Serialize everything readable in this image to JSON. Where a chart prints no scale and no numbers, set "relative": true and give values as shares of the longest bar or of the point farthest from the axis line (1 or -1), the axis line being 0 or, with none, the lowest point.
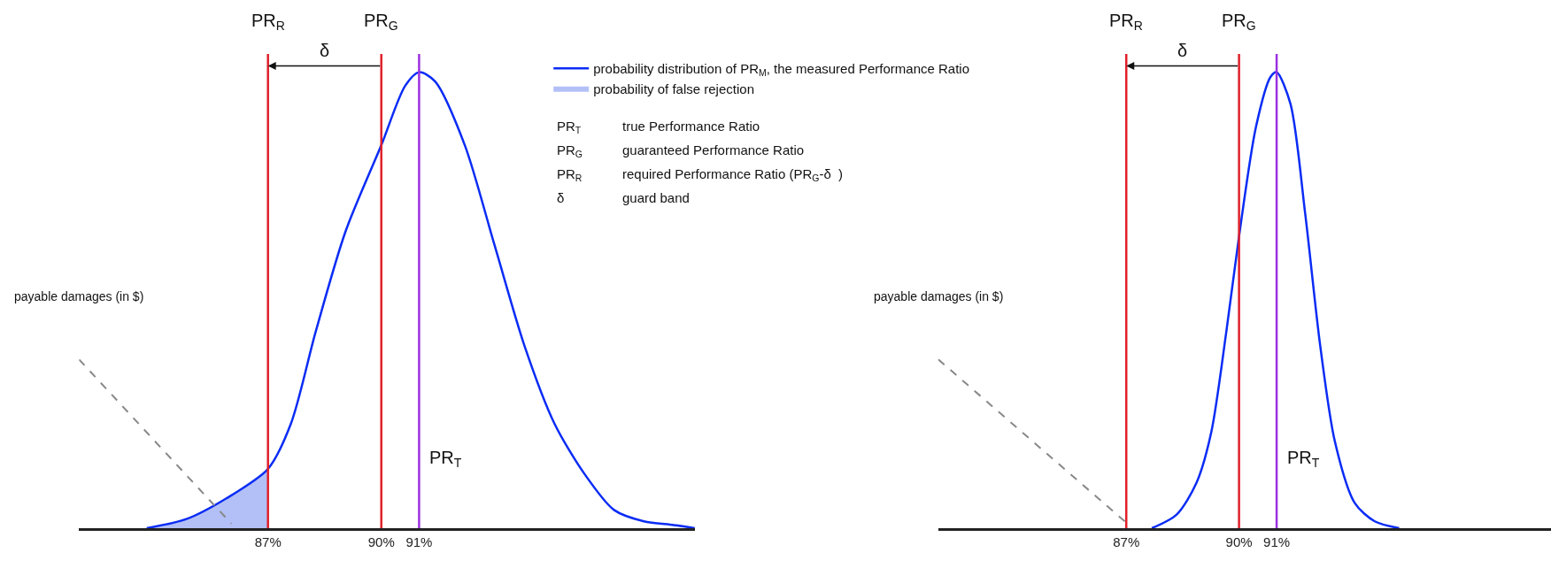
{
  "chart_data": [
    {
      "type": "line",
      "relative": true,
      "xlim": [
        82,
        98.3
      ],
      "xticks": [
        {
          "value": 87,
          "label": "87%"
        },
        {
          "value": 90,
          "label": "90%"
        },
        {
          "value": 91,
          "label": "91%"
        }
      ],
      "legend": "top right",
      "tick_labels": "x",
      "series": [
        {
          "type": "area",
          "name": "probability of false rejection",
          "color": "#b3c0f7",
          "x": [
            83.79,
            84.84,
            85.89,
            87
          ],
          "values": [
            0,
            0.02,
            0.065,
            0.13
          ]
        },
        {
          "name": "probability distribution of PR$_{M}$, the measured Performance Ratio",
          "color": "#0a2cf5",
          "x": [
            83.79,
            84.84,
            85.89,
            87,
            87.61,
            88.26,
            89.05,
            90,
            90.63,
            91,
            91.42,
            92.21,
            93.0,
            93.79,
            94.58,
            95.37,
            96.16,
            96.95,
            97.74,
            98.3
          ],
          "values": [
            0,
            0.02,
            0.065,
            0.13,
            0.23,
            0.43,
            0.65,
            0.84,
            0.97,
            1,
            0.98,
            0.84,
            0.62,
            0.4,
            0.23,
            0.12,
            0.04,
            0.015,
            0.007,
            0
          ]
        },
        {
          "color": "#888888",
          "line_style": "dashed",
          "x": [
            82,
            86.03
          ],
          "values": [
            0.37,
            0.01
          ]
        }
      ],
      "ref_lines": [
        {
          "axis": "x",
          "value": 87,
          "label": "PR$_{R}$",
          "color": "#e0202a"
        },
        {
          "axis": "x",
          "value": 90,
          "label": "PR$_{G}$",
          "color": "#e0202a"
        },
        {
          "axis": "x",
          "value": 91,
          "label": "PR$_{T}$",
          "color": "#9b30e0"
        }
      ],
      "annotations": [
        "δ",
        "payable damages (in $)",
        "PR$_{T}$",
        "true Performance Ratio",
        "PR$_{G}$",
        "guaranteed Performance Ratio",
        "PR$_{R}$",
        "required Performance Ratio (PR$_{G}$-δ  )",
        "δ",
        "guard band"
      ]
    },
    {
      "type": "line",
      "relative": true,
      "xlim": [
        82,
        98.3
      ],
      "xticks": [
        {
          "value": 87,
          "label": "87%"
        },
        {
          "value": 90,
          "label": "90%"
        },
        {
          "value": 91,
          "label": "91%"
        }
      ],
      "tick_labels": "x",
      "series": [
        {
          "color": "#0a2cf5",
          "x": [
            87.68,
            88.34,
            88.87,
            89.26,
            89.66,
            90,
            90.45,
            90.84,
            91,
            91.37,
            91.76,
            92.16,
            92.55,
            93.08,
            93.61,
            94.26
          ],
          "values": [
            0,
            0.03,
            0.1,
            0.21,
            0.43,
            0.64,
            0.88,
            0.99,
            1,
            0.93,
            0.69,
            0.4,
            0.19,
            0.055,
            0.015,
            0
          ]
        },
        {
          "color": "#888888",
          "line_style": "dashed",
          "x": [
            82,
            87.03
          ],
          "values": [
            0.37,
            0.01
          ]
        }
      ],
      "ref_lines": [
        {
          "axis": "x",
          "value": 87,
          "label": "PR$_{R}$",
          "color": "#e0202a"
        },
        {
          "axis": "x",
          "value": 90,
          "label": "PR$_{G}$",
          "color": "#e0202a"
        },
        {
          "axis": "x",
          "value": 91,
          "label": "PR$_{T}$",
          "color": "#9b30e0"
        }
      ],
      "annotations": [
        "δ",
        "payable damages (in $)"
      ]
    }
  ]
}
